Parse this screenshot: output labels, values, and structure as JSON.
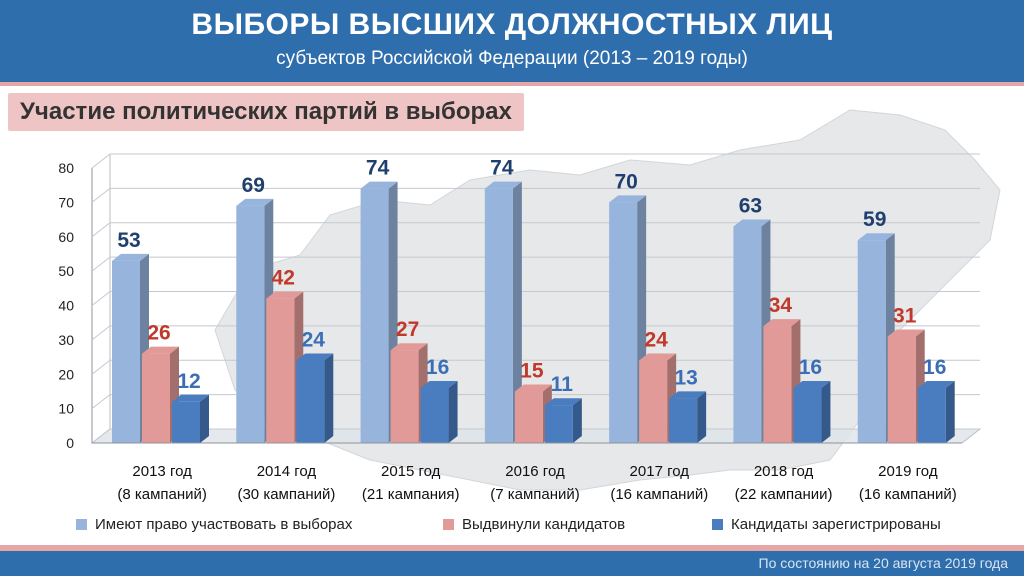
{
  "header": {
    "title": "ВЫБОРЫ ВЫСШИХ ДОЛЖНОСТНЫХ ЛИЦ",
    "subtitle": "субъектов Российской Федерации (2013 – 2019 годы)"
  },
  "section_title": "Участие политических партий в выборах",
  "chart_data": {
    "type": "bar",
    "title": "Участие политических партий в выборах",
    "xlabel": "",
    "ylabel": "",
    "ylim": [
      0,
      80
    ],
    "yticks": [
      0,
      10,
      20,
      30,
      40,
      50,
      60,
      70,
      80
    ],
    "grid": true,
    "legend_position": "bottom",
    "categories": [
      {
        "year": "2013 год",
        "campaigns": "(8 кампаний)"
      },
      {
        "year": "2014 год",
        "campaigns": "(30 кампаний)"
      },
      {
        "year": "2015 год",
        "campaigns": "(21 кампания)"
      },
      {
        "year": "2016 год",
        "campaigns": "(7 кампаний)"
      },
      {
        "year": "2017 год",
        "campaigns": "(16 кампаний)"
      },
      {
        "year": "2018 год",
        "campaigns": "(22 кампании)"
      },
      {
        "year": "2019 год",
        "campaigns": "(16 кампаний)"
      }
    ],
    "series": [
      {
        "name": "Имеют право участвовать в выборах",
        "color": "#97b5dc",
        "label_color": "#1f3f6e",
        "values": [
          53,
          69,
          74,
          74,
          70,
          63,
          59
        ]
      },
      {
        "name": "Выдвинули кандидатов",
        "color": "#e29a98",
        "label_color": "#c0392b",
        "values": [
          26,
          42,
          27,
          15,
          24,
          34,
          31
        ]
      },
      {
        "name": "Кандидаты зарегистрированы",
        "color": "#4a7cc0",
        "label_color": "#3b6fb5",
        "values": [
          12,
          24,
          16,
          11,
          13,
          16,
          16
        ]
      }
    ]
  },
  "footer": {
    "note": "По состоянию на 20 августа 2019 года"
  }
}
